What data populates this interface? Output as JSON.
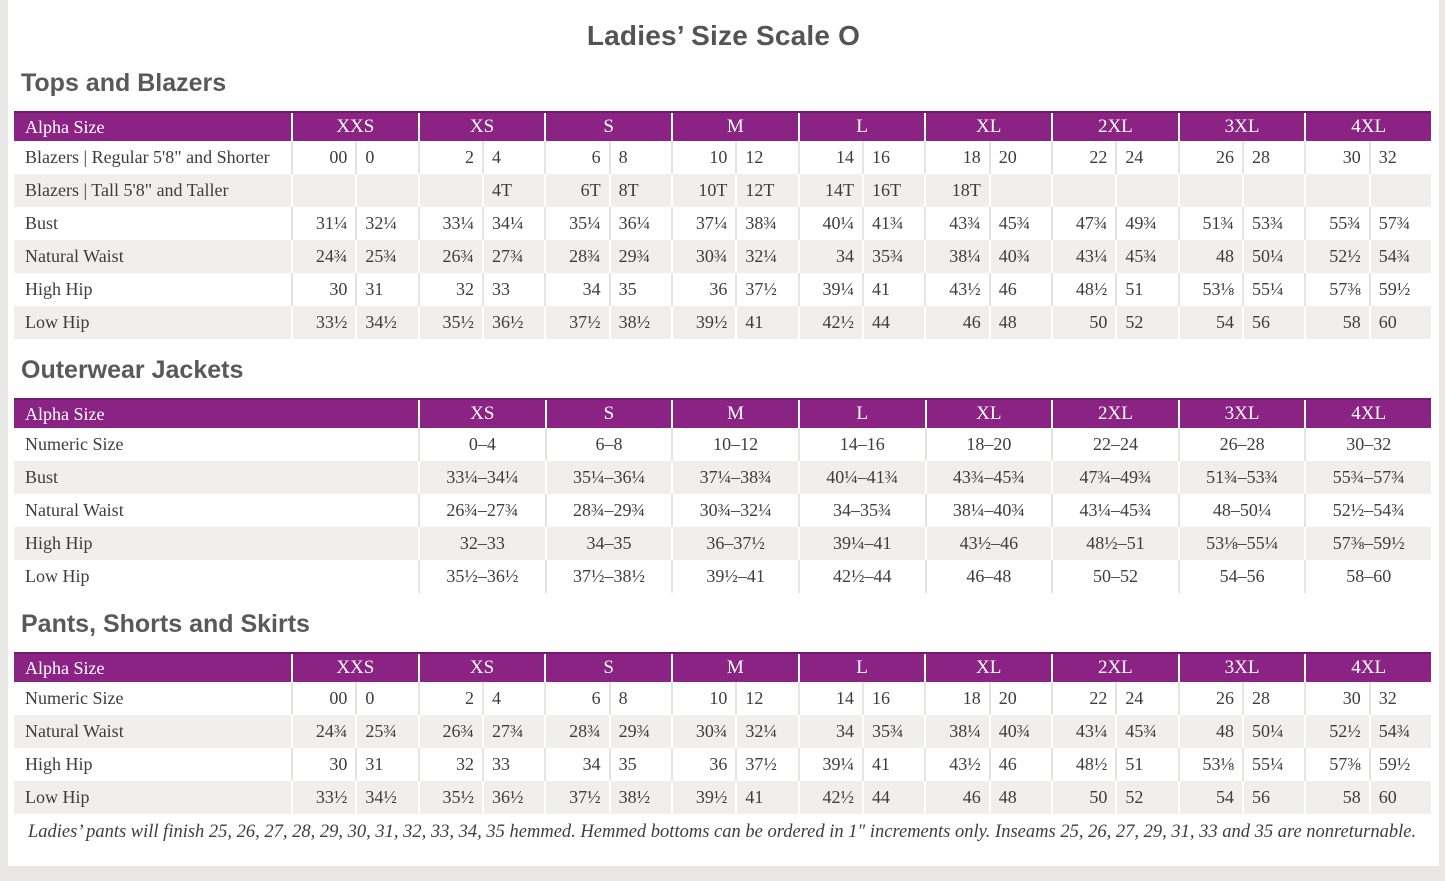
{
  "page": {
    "title": "Ladies’ Size Scale O",
    "footnote": "Ladies’ pants will finish 25, 26, 27, 28, 29, 30, 31, 32, 33, 34, 35 hemmed. Hemmed bottoms can be ordered in 1″ increments only. Inseams 25, 26, 27, 29, 31, 33 and 35 are nonreturnable."
  },
  "colors": {
    "header_purple": "#8a2383",
    "header_top_edge": "#71196b",
    "row_stripe_gray": "#f1efed",
    "heading_gray": "#59595b",
    "body_text": "#3d3d3f",
    "page_surround": "#e9e7e5"
  },
  "tables": [
    {
      "section_title": "Tops and Blazers",
      "layout": "paired",
      "header_label": "Alpha Size",
      "alpha_sizes": [
        "XXS",
        "XS",
        "S",
        "M",
        "L",
        "XL",
        "2XL",
        "3XL",
        "4XL"
      ],
      "rows": [
        {
          "label": "Blazers  |  Regular 5'8\" and Shorter",
          "values": [
            [
              "00",
              "0"
            ],
            [
              "2",
              "4"
            ],
            [
              "6",
              "8"
            ],
            [
              "10",
              "12"
            ],
            [
              "14",
              "16"
            ],
            [
              "18",
              "20"
            ],
            [
              "22",
              "24"
            ],
            [
              "26",
              "28"
            ],
            [
              "30",
              "32"
            ]
          ]
        },
        {
          "label": "Blazers  |  Tall 5'8\" and Taller",
          "values": [
            [
              "",
              ""
            ],
            [
              "",
              "4T"
            ],
            [
              "6T",
              "8T"
            ],
            [
              "10T",
              "12T"
            ],
            [
              "14T",
              "16T"
            ],
            [
              "18T",
              ""
            ],
            [
              "",
              ""
            ],
            [
              "",
              ""
            ],
            [
              "",
              ""
            ]
          ]
        },
        {
          "label": "Bust",
          "values": [
            [
              "31¼",
              "32¼"
            ],
            [
              "33¼",
              "34¼"
            ],
            [
              "35¼",
              "36¼"
            ],
            [
              "37¼",
              "38¾"
            ],
            [
              "40¼",
              "41¾"
            ],
            [
              "43¾",
              "45¾"
            ],
            [
              "47¾",
              "49¾"
            ],
            [
              "51¾",
              "53¾"
            ],
            [
              "55¾",
              "57¾"
            ]
          ]
        },
        {
          "label": "Natural Waist",
          "values": [
            [
              "24¾",
              "25¾"
            ],
            [
              "26¾",
              "27¾"
            ],
            [
              "28¾",
              "29¾"
            ],
            [
              "30¾",
              "32¼"
            ],
            [
              "34",
              "35¾"
            ],
            [
              "38¼",
              "40¾"
            ],
            [
              "43¼",
              "45¾"
            ],
            [
              "48",
              "50¼"
            ],
            [
              "52½",
              "54¾"
            ]
          ]
        },
        {
          "label": "High Hip",
          "values": [
            [
              "30",
              "31"
            ],
            [
              "32",
              "33"
            ],
            [
              "34",
              "35"
            ],
            [
              "36",
              "37½"
            ],
            [
              "39¼",
              "41"
            ],
            [
              "43½",
              "46"
            ],
            [
              "48½",
              "51"
            ],
            [
              "53⅛",
              "55¼"
            ],
            [
              "57⅜",
              "59½"
            ]
          ]
        },
        {
          "label": "Low Hip",
          "values": [
            [
              "33½",
              "34½"
            ],
            [
              "35½",
              "36½"
            ],
            [
              "37½",
              "38½"
            ],
            [
              "39½",
              "41"
            ],
            [
              "42½",
              "44"
            ],
            [
              "46",
              "48"
            ],
            [
              "50",
              "52"
            ],
            [
              "54",
              "56"
            ],
            [
              "58",
              "60"
            ]
          ]
        }
      ]
    },
    {
      "section_title": "Outerwear Jackets",
      "layout": "single",
      "header_label": "Alpha Size",
      "alpha_sizes": [
        "XS",
        "S",
        "M",
        "L",
        "XL",
        "2XL",
        "3XL",
        "4XL"
      ],
      "rows": [
        {
          "label": "Numeric Size",
          "values": [
            "0–4",
            "6–8",
            "10–12",
            "14–16",
            "18–20",
            "22–24",
            "26–28",
            "30–32"
          ]
        },
        {
          "label": "Bust",
          "values": [
            "33¼–34¼",
            "35¼–36¼",
            "37¼–38¾",
            "40¼–41¾",
            "43¾–45¾",
            "47¾–49¾",
            "51¾–53¾",
            "55¾–57¾"
          ]
        },
        {
          "label": "Natural Waist",
          "values": [
            "26¾–27¾",
            "28¾–29¾",
            "30¾–32¼",
            "34–35¾",
            "38¼–40¾",
            "43¼–45¾",
            "48–50¼",
            "52½–54¾"
          ]
        },
        {
          "label": "High Hip",
          "values": [
            "32–33",
            "34–35",
            "36–37½",
            "39¼–41",
            "43½–46",
            "48½–51",
            "53⅛–55¼",
            "57⅜–59½"
          ]
        },
        {
          "label": "Low Hip",
          "values": [
            "35½–36½",
            "37½–38½",
            "39½–41",
            "42½–44",
            "46–48",
            "50–52",
            "54–56",
            "58–60"
          ]
        }
      ]
    },
    {
      "section_title": "Pants, Shorts and Skirts",
      "layout": "paired",
      "header_label": "Alpha Size",
      "alpha_sizes": [
        "XXS",
        "XS",
        "S",
        "M",
        "L",
        "XL",
        "2XL",
        "3XL",
        "4XL"
      ],
      "rows": [
        {
          "label": "Numeric Size",
          "values": [
            [
              "00",
              "0"
            ],
            [
              "2",
              "4"
            ],
            [
              "6",
              "8"
            ],
            [
              "10",
              "12"
            ],
            [
              "14",
              "16"
            ],
            [
              "18",
              "20"
            ],
            [
              "22",
              "24"
            ],
            [
              "26",
              "28"
            ],
            [
              "30",
              "32"
            ]
          ]
        },
        {
          "label": "Natural Waist",
          "values": [
            [
              "24¾",
              "25¾"
            ],
            [
              "26¾",
              "27¾"
            ],
            [
              "28¾",
              "29¾"
            ],
            [
              "30¾",
              "32¼"
            ],
            [
              "34",
              "35¾"
            ],
            [
              "38¼",
              "40¾"
            ],
            [
              "43¼",
              "45¾"
            ],
            [
              "48",
              "50¼"
            ],
            [
              "52½",
              "54¾"
            ]
          ]
        },
        {
          "label": "High Hip",
          "values": [
            [
              "30",
              "31"
            ],
            [
              "32",
              "33"
            ],
            [
              "34",
              "35"
            ],
            [
              "36",
              "37½"
            ],
            [
              "39¼",
              "41"
            ],
            [
              "43½",
              "46"
            ],
            [
              "48½",
              "51"
            ],
            [
              "53⅛",
              "55¼"
            ],
            [
              "57⅜",
              "59½"
            ]
          ]
        },
        {
          "label": "Low Hip",
          "values": [
            [
              "33½",
              "34½"
            ],
            [
              "35½",
              "36½"
            ],
            [
              "37½",
              "38½"
            ],
            [
              "39½",
              "41"
            ],
            [
              "42½",
              "44"
            ],
            [
              "46",
              "48"
            ],
            [
              "50",
              "52"
            ],
            [
              "54",
              "56"
            ],
            [
              "58",
              "60"
            ]
          ]
        }
      ]
    }
  ]
}
